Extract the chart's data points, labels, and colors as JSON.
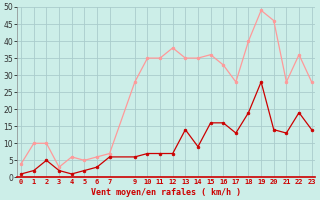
{
  "hours": [
    0,
    1,
    2,
    3,
    4,
    5,
    6,
    7,
    9,
    10,
    11,
    12,
    13,
    14,
    15,
    16,
    17,
    18,
    19,
    20,
    21,
    22,
    23
  ],
  "wind_avg": [
    1,
    2,
    5,
    2,
    1,
    2,
    3,
    6,
    6,
    7,
    7,
    7,
    14,
    9,
    16,
    16,
    13,
    19,
    28,
    14,
    13,
    19,
    14
  ],
  "wind_gust": [
    4,
    10,
    10,
    3,
    6,
    5,
    6,
    7,
    28,
    35,
    35,
    38,
    35,
    35,
    36,
    33,
    28,
    40,
    49,
    46,
    28,
    36,
    28
  ],
  "color_avg": "#cc0000",
  "color_gust": "#ff9999",
  "bg_color": "#cceee8",
  "grid_color": "#aacccc",
  "xlabel": "Vent moyen/en rafales ( km/h )",
  "ylim": [
    0,
    50
  ],
  "yticks": [
    0,
    5,
    10,
    15,
    20,
    25,
    30,
    35,
    40,
    45,
    50
  ],
  "xlim": [
    -0.3,
    23.3
  ],
  "xticks": [
    0,
    1,
    2,
    3,
    4,
    5,
    6,
    7,
    9,
    10,
    11,
    12,
    13,
    14,
    15,
    16,
    17,
    18,
    19,
    20,
    21,
    22,
    23
  ]
}
